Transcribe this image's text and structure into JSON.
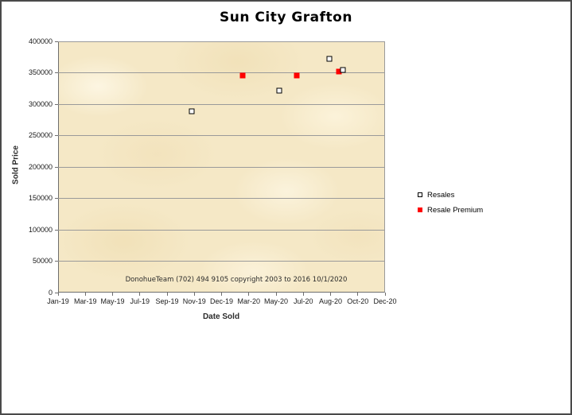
{
  "window": {
    "background": "#FFFFFF",
    "border_color": "#4A4A4A"
  },
  "chart_data": {
    "type": "scatter",
    "title": "Sun City Grafton",
    "xlabel": "Date Sold",
    "ylabel": "Sold Price",
    "ylim": [
      0,
      400000
    ],
    "ytick_step": 50000,
    "ytick_labels": [
      "0",
      "50000",
      "100000",
      "150000",
      "200000",
      "250000",
      "300000",
      "350000",
      "400000"
    ],
    "xtick_labels": [
      "Jan-19",
      "Mar-19",
      "May-19",
      "Jul-19",
      "Sep-19",
      "Nov-19",
      "Dec-19",
      "Mar-20",
      "May-20",
      "Jul-20",
      "Aug-20",
      "Oct-20",
      "Dec-20"
    ],
    "grid": true,
    "legend_position": "right-outside",
    "annotation": "DonohueTeam  (702) 494 9105 copyright  2003 to 2016  10/1/2020",
    "plot_bg_color": "#F5E8C6",
    "gridline_color": "#9A9A9A",
    "axis_color": "#6E6E6E",
    "series": [
      {
        "name": "Resales",
        "marker": "open-square",
        "marker_color": "#000000",
        "marker_fill": "#FFFFFF",
        "points": [
          {
            "date": "Nov-19",
            "x_frac": 0.408,
            "value": 289000
          },
          {
            "date": "May-20",
            "x_frac": 0.676,
            "value": 322000
          },
          {
            "date": "Aug-20",
            "x_frac": 0.829,
            "value": 372000
          },
          {
            "date": "Sep-20",
            "x_frac": 0.871,
            "value": 355000
          }
        ]
      },
      {
        "name": "Resale Premium",
        "marker": "filled-square",
        "marker_color": "#FF0000",
        "points": [
          {
            "date": "Feb-20",
            "x_frac": 0.564,
            "value": 345000
          },
          {
            "date": "Jun-20",
            "x_frac": 0.729,
            "value": 346000
          },
          {
            "date": "Sep-20",
            "x_frac": 0.86,
            "value": 352000
          }
        ]
      }
    ]
  }
}
